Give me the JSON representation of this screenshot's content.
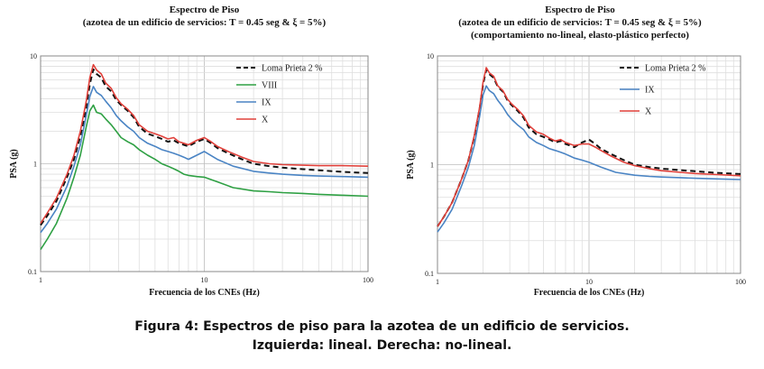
{
  "chart_data": [
    {
      "type": "line",
      "title": [
        "Espectro de Piso",
        "(azotea de un edificio de servicios: T = 0.45 seg & ξ = 5%)"
      ],
      "xlabel": "Frecuencia de los CNEs (Hz)",
      "ylabel": "PSA (g)",
      "xscale": "log",
      "yscale": "log",
      "xlim": [
        1,
        100
      ],
      "ylim": [
        0.1,
        10
      ],
      "x_ticks": [
        "1",
        "10",
        "100"
      ],
      "y_ticks": [
        "0.1",
        "1",
        "10"
      ],
      "grid": true,
      "legend_position": "top-right",
      "series": [
        {
          "name": "Loma Prieta 2 %",
          "color": "#111111",
          "dashed": true,
          "x": [
            1,
            1.1,
            1.25,
            1.45,
            1.6,
            1.75,
            1.9,
            2.0,
            2.1,
            2.2,
            2.35,
            2.5,
            2.7,
            2.9,
            3.1,
            3.4,
            3.7,
            4.0,
            4.5,
            5.0,
            5.5,
            6.0,
            6.5,
            7.0,
            7.5,
            8.0,
            9.0,
            10.0,
            11.0,
            12.0,
            14.0,
            17.0,
            20.0,
            25.0,
            30.0,
            40.0,
            50.0,
            70.0,
            100.0
          ],
          "y": [
            0.27,
            0.33,
            0.45,
            0.75,
            1.1,
            1.8,
            3.3,
            5.5,
            7.5,
            6.8,
            6.3,
            5.2,
            4.7,
            3.9,
            3.5,
            3.1,
            2.7,
            2.2,
            1.9,
            1.8,
            1.7,
            1.6,
            1.65,
            1.55,
            1.5,
            1.45,
            1.6,
            1.7,
            1.55,
            1.4,
            1.25,
            1.1,
            1.0,
            0.95,
            0.92,
            0.89,
            0.87,
            0.84,
            0.82
          ]
        },
        {
          "name": "VIII",
          "color": "#2ea043",
          "dashed": false,
          "x": [
            1,
            1.1,
            1.25,
            1.45,
            1.6,
            1.75,
            1.9,
            2.0,
            2.1,
            2.2,
            2.35,
            2.5,
            2.7,
            2.9,
            3.1,
            3.4,
            3.7,
            4.0,
            4.5,
            5.0,
            5.5,
            6.0,
            6.5,
            7.0,
            7.5,
            8.0,
            9.0,
            10.0,
            12.0,
            15.0,
            20.0,
            25.0,
            30.0,
            40.0,
            50.0,
            70.0,
            100.0
          ],
          "y": [
            0.16,
            0.2,
            0.28,
            0.48,
            0.75,
            1.2,
            2.2,
            3.1,
            3.5,
            3.0,
            2.9,
            2.6,
            2.3,
            2.0,
            1.75,
            1.6,
            1.5,
            1.35,
            1.2,
            1.1,
            1.0,
            0.95,
            0.9,
            0.85,
            0.8,
            0.78,
            0.76,
            0.75,
            0.68,
            0.6,
            0.56,
            0.55,
            0.54,
            0.53,
            0.52,
            0.51,
            0.5
          ]
        },
        {
          "name": "IX",
          "color": "#4a84c4",
          "dashed": false,
          "x": [
            1,
            1.1,
            1.25,
            1.45,
            1.6,
            1.75,
            1.9,
            2.0,
            2.1,
            2.2,
            2.35,
            2.5,
            2.7,
            2.9,
            3.1,
            3.4,
            3.7,
            4.0,
            4.5,
            5.0,
            5.5,
            6.0,
            6.5,
            7.0,
            7.5,
            8.0,
            9.0,
            10.0,
            12.0,
            15.0,
            20.0,
            25.0,
            30.0,
            40.0,
            50.0,
            70.0,
            100.0
          ],
          "y": [
            0.23,
            0.28,
            0.38,
            0.62,
            0.95,
            1.5,
            2.8,
            4.2,
            5.2,
            4.6,
            4.3,
            3.8,
            3.3,
            2.8,
            2.5,
            2.2,
            2.0,
            1.75,
            1.55,
            1.45,
            1.35,
            1.3,
            1.25,
            1.2,
            1.15,
            1.1,
            1.2,
            1.3,
            1.1,
            0.95,
            0.85,
            0.82,
            0.8,
            0.78,
            0.77,
            0.76,
            0.75
          ]
        },
        {
          "name": "X",
          "color": "#e0403a",
          "dashed": false,
          "x": [
            1,
            1.1,
            1.25,
            1.45,
            1.6,
            1.75,
            1.9,
            2.0,
            2.1,
            2.2,
            2.35,
            2.5,
            2.7,
            2.9,
            3.1,
            3.4,
            3.7,
            4.0,
            4.5,
            5.0,
            5.5,
            6.0,
            6.5,
            7.0,
            7.5,
            8.0,
            9.0,
            10.0,
            11.0,
            12.0,
            14.0,
            17.0,
            20.0,
            25.0,
            30.0,
            40.0,
            50.0,
            70.0,
            100.0
          ],
          "y": [
            0.28,
            0.35,
            0.48,
            0.8,
            1.2,
            2.0,
            3.8,
            6.3,
            8.3,
            7.4,
            6.8,
            5.6,
            5.0,
            4.1,
            3.6,
            3.2,
            2.8,
            2.3,
            2.0,
            1.9,
            1.8,
            1.7,
            1.75,
            1.6,
            1.55,
            1.5,
            1.65,
            1.75,
            1.6,
            1.45,
            1.3,
            1.15,
            1.05,
            1.0,
            0.98,
            0.97,
            0.96,
            0.96,
            0.95
          ]
        }
      ]
    },
    {
      "type": "line",
      "title": [
        "Espectro de Piso",
        "(azotea de un edificio de servicios: T = 0.45 seg & ξ = 5%)",
        "(comportamiento no-lineal, elasto-plástico perfecto)"
      ],
      "xlabel": "Frecuencia de los CNEs (Hz)",
      "ylabel": "PSA (g)",
      "xscale": "log",
      "yscale": "log",
      "xlim": [
        1,
        100
      ],
      "ylim": [
        0.1,
        10
      ],
      "x_ticks": [
        "1",
        "10",
        "100"
      ],
      "y_ticks": [
        "0.1",
        "1",
        "10"
      ],
      "grid": true,
      "legend_position": "top-right",
      "series": [
        {
          "name": "Loma Prieta 2 %",
          "color": "#111111",
          "dashed": true,
          "x": [
            1,
            1.1,
            1.25,
            1.45,
            1.6,
            1.75,
            1.9,
            2.0,
            2.1,
            2.2,
            2.35,
            2.5,
            2.7,
            2.9,
            3.1,
            3.4,
            3.7,
            4.0,
            4.5,
            5.0,
            5.5,
            6.0,
            6.5,
            7.0,
            7.5,
            8.0,
            9.0,
            10.0,
            11.0,
            12.0,
            14.0,
            17.0,
            20.0,
            25.0,
            30.0,
            40.0,
            50.0,
            70.0,
            100.0
          ],
          "y": [
            0.27,
            0.33,
            0.45,
            0.75,
            1.1,
            1.8,
            3.3,
            5.5,
            7.5,
            6.8,
            6.3,
            5.2,
            4.7,
            3.9,
            3.5,
            3.1,
            2.7,
            2.2,
            1.9,
            1.8,
            1.7,
            1.6,
            1.65,
            1.55,
            1.5,
            1.45,
            1.6,
            1.7,
            1.55,
            1.4,
            1.25,
            1.1,
            1.0,
            0.95,
            0.92,
            0.89,
            0.87,
            0.84,
            0.82
          ]
        },
        {
          "name": "IX",
          "color": "#4a84c4",
          "dashed": false,
          "x": [
            1,
            1.1,
            1.25,
            1.45,
            1.6,
            1.75,
            1.9,
            2.0,
            2.1,
            2.2,
            2.35,
            2.5,
            2.7,
            2.9,
            3.1,
            3.4,
            3.7,
            4.0,
            4.5,
            5.0,
            5.5,
            6.0,
            6.5,
            7.0,
            7.5,
            8.0,
            9.0,
            10.0,
            12.0,
            15.0,
            20.0,
            25.0,
            30.0,
            40.0,
            50.0,
            70.0,
            100.0
          ],
          "y": [
            0.24,
            0.29,
            0.39,
            0.65,
            0.95,
            1.5,
            2.8,
            4.4,
            5.3,
            4.8,
            4.5,
            3.9,
            3.4,
            2.9,
            2.6,
            2.3,
            2.1,
            1.8,
            1.6,
            1.5,
            1.4,
            1.35,
            1.3,
            1.25,
            1.2,
            1.15,
            1.1,
            1.05,
            0.95,
            0.85,
            0.8,
            0.78,
            0.77,
            0.76,
            0.75,
            0.74,
            0.73
          ]
        },
        {
          "name": "X",
          "color": "#e0403a",
          "dashed": false,
          "x": [
            1,
            1.1,
            1.25,
            1.45,
            1.6,
            1.75,
            1.9,
            2.0,
            2.1,
            2.2,
            2.35,
            2.5,
            2.7,
            2.9,
            3.1,
            3.4,
            3.7,
            4.0,
            4.5,
            5.0,
            5.5,
            6.0,
            6.5,
            7.0,
            7.5,
            8.0,
            9.0,
            10.0,
            11.0,
            12.0,
            14.0,
            17.0,
            20.0,
            25.0,
            30.0,
            40.0,
            50.0,
            70.0,
            100.0
          ],
          "y": [
            0.27,
            0.33,
            0.45,
            0.75,
            1.1,
            1.85,
            3.4,
            5.8,
            7.8,
            7.0,
            6.5,
            5.3,
            4.8,
            4.0,
            3.6,
            3.2,
            2.8,
            2.3,
            2.0,
            1.9,
            1.75,
            1.65,
            1.7,
            1.6,
            1.55,
            1.5,
            1.55,
            1.55,
            1.45,
            1.35,
            1.2,
            1.05,
            0.98,
            0.92,
            0.88,
            0.85,
            0.83,
            0.81,
            0.79
          ]
        }
      ]
    }
  ],
  "caption": {
    "line1": "Figura 4: Espectros de piso para la azotea de un edificio de servicios.",
    "line2": "Izquierda: lineal. Derecha: no-lineal."
  }
}
